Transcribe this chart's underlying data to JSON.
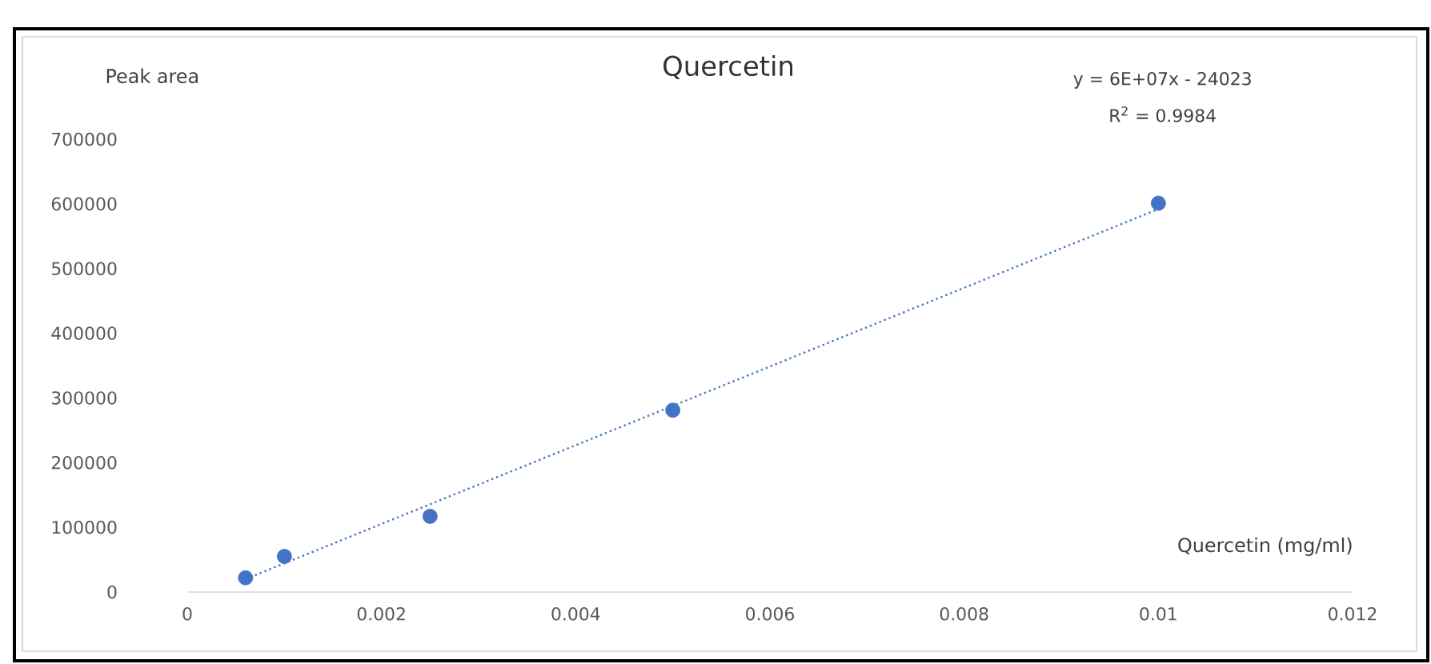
{
  "chart_data": {
    "type": "scatter",
    "title": "Quercetin",
    "xlabel": "Quercetin (mg/ml)",
    "ylabel": "Peak area",
    "annotations": [
      "y = 6E+07x - 24023",
      "R$^{2}$ = 0.9984"
    ],
    "xlim": [
      0,
      0.012
    ],
    "xticks": [
      0,
      0.002,
      0.004,
      0.006,
      0.008,
      0.01,
      0.012
    ],
    "ylim": [
      0,
      700000
    ],
    "yticks": [
      0,
      100000,
      200000,
      300000,
      400000,
      500000,
      600000,
      700000
    ],
    "series": [
      {
        "marker": "circle",
        "color": "#4472c4",
        "x": [
          0.0006,
          0.001,
          0.0025,
          0.005,
          0.01
        ],
        "values": [
          22000,
          55000,
          117000,
          281000,
          601000
        ]
      },
      {
        "type": "line",
        "color": "#4472c4",
        "line_style": "dotted",
        "marker": "none",
        "x": [
          0.0006,
          0.01
        ],
        "values": [
          20000,
          592000
        ]
      }
    ]
  }
}
